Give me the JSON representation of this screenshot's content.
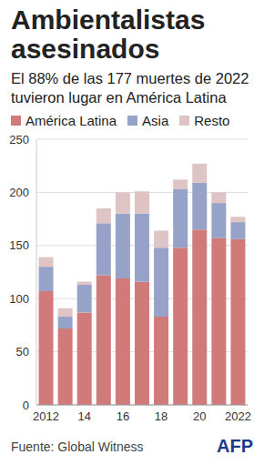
{
  "chart_data": {
    "type": "bar",
    "title": "Ambientalistas asesinados",
    "subtitle": "El 88% de las 177 muertes de 2022 tuvieron lugar en América Latina",
    "source": "Fuente: Global Witness",
    "logo": "AFP",
    "categories": [
      "2012",
      null,
      "14",
      null,
      "16",
      null,
      "18",
      null,
      "20",
      null,
      "2022"
    ],
    "series": [
      {
        "name": "América Latina",
        "color": "#d07a7a",
        "values": [
          107,
          72,
          87,
          122,
          119,
          116,
          83,
          148,
          165,
          157,
          156
        ]
      },
      {
        "name": "Asia",
        "color": "#97a2c9",
        "values": [
          23,
          11,
          26,
          49,
          61,
          64,
          65,
          55,
          44,
          33,
          16
        ]
      },
      {
        "name": "Resto",
        "color": "#dfc4c6",
        "values": [
          9,
          8,
          3,
          14,
          20,
          21,
          16,
          9,
          18,
          10,
          5
        ]
      }
    ],
    "ylim": [
      0,
      250
    ],
    "yticks": [
      0,
      50,
      100,
      150,
      200,
      250
    ],
    "grid": true,
    "stacked": true
  }
}
